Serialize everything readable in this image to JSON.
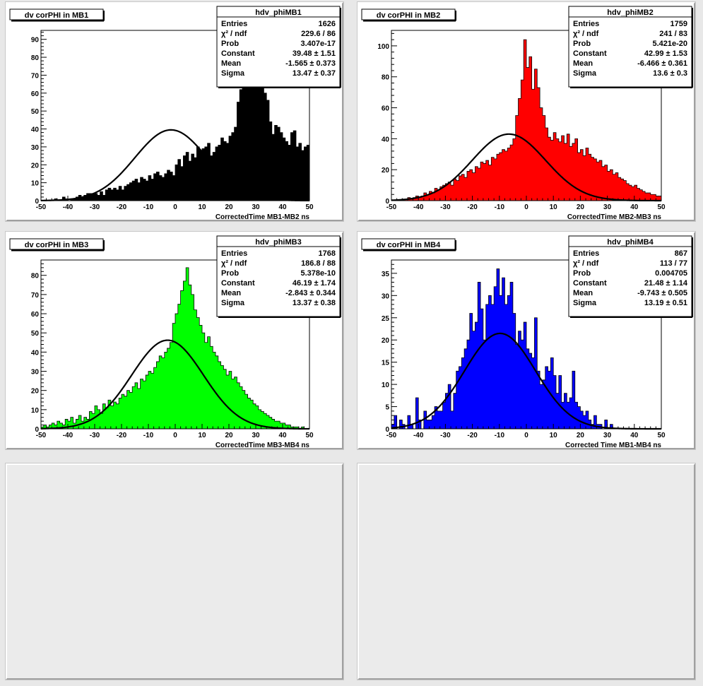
{
  "chart_data": [
    {
      "type": "bar",
      "pad_title": "dv corPHI in MB1",
      "stats_title": "hdv_phiMB1",
      "stats": [
        {
          "label": "Entries",
          "value": "1626"
        },
        {
          "label": "χ² / ndf",
          "value": "229.6 / 86"
        },
        {
          "label": "Prob",
          "value": "3.407e-17"
        },
        {
          "label": "Constant",
          "value": "39.48 ± 1.51"
        },
        {
          "label": "Mean",
          "value": "-1.565 ± 0.373"
        },
        {
          "label": "Sigma",
          "value": "13.47 ± 0.37"
        }
      ],
      "xlabel": "CorrectedTime MB1-MB2   ns",
      "xlim": [
        -50,
        50
      ],
      "ylim": [
        0,
        95
      ],
      "xticks": [
        -50,
        -40,
        -30,
        -20,
        -10,
        0,
        10,
        20,
        30,
        40,
        50
      ],
      "yticks": [
        0,
        10,
        20,
        30,
        40,
        50,
        60,
        70,
        80,
        90
      ],
      "fill": "#000000",
      "fit": {
        "constant": 39.48,
        "mean": -1.565,
        "sigma": 13.47
      },
      "bin_start": -50,
      "bin_width": 1,
      "values": [
        0,
        0,
        0,
        0,
        0,
        1,
        0,
        0,
        2,
        1,
        0,
        1,
        1,
        2,
        3,
        2,
        3,
        4,
        4,
        4,
        4,
        3,
        5,
        3,
        6,
        7,
        6,
        7,
        6,
        8,
        6,
        8,
        9,
        10,
        11,
        12,
        10,
        13,
        12,
        11,
        14,
        12,
        15,
        16,
        14,
        13,
        15,
        17,
        16,
        14,
        20,
        23,
        19,
        25,
        27,
        22,
        26,
        24,
        30,
        28,
        29,
        30,
        32,
        25,
        27,
        30,
        31,
        35,
        33,
        32,
        36,
        38,
        41,
        55,
        62,
        72,
        80,
        88,
        91,
        87,
        82,
        79,
        78,
        60,
        56,
        44,
        37,
        42,
        41,
        38,
        35,
        33,
        31,
        38,
        39,
        30,
        32,
        28,
        30,
        31,
        29,
        31,
        25,
        24,
        27,
        20,
        23,
        26,
        22,
        21,
        19,
        22,
        17,
        16,
        20,
        18,
        15,
        16,
        14,
        15,
        13,
        12,
        11,
        10,
        9,
        10,
        11,
        9,
        8,
        9,
        7,
        6,
        5,
        4,
        4,
        5,
        3,
        3,
        2,
        3,
        2,
        1,
        2,
        1,
        1,
        0,
        1,
        0,
        1,
        0,
        0,
        0,
        0,
        0,
        0
      ]
    },
    {
      "type": "bar",
      "pad_title": "dv corPHI in MB2",
      "stats_title": "hdv_phiMB2",
      "stats": [
        {
          "label": "Entries",
          "value": "1759"
        },
        {
          "label": "χ² / ndf",
          "value": "241 / 83"
        },
        {
          "label": "Prob",
          "value": "5.421e-20"
        },
        {
          "label": "Constant",
          "value": "42.99 ± 1.53"
        },
        {
          "label": "Mean",
          "value": "-6.466 ± 0.361"
        },
        {
          "label": "Sigma",
          "value": "13.6 ± 0.3"
        }
      ],
      "xlabel": "CorrectedTime MB2-MB3   ns",
      "xlim": [
        -50,
        50
      ],
      "ylim": [
        0,
        110
      ],
      "xticks": [
        -50,
        -40,
        -30,
        -20,
        -10,
        0,
        10,
        20,
        30,
        40,
        50
      ],
      "yticks": [
        0,
        20,
        40,
        60,
        80,
        100
      ],
      "fill": "#ff0000",
      "fit": {
        "constant": 42.99,
        "mean": -6.466,
        "sigma": 13.6
      },
      "bin_start": -50,
      "bin_width": 1,
      "values": [
        0,
        0,
        0,
        0,
        1,
        1,
        2,
        1,
        2,
        3,
        2,
        3,
        5,
        4,
        6,
        5,
        8,
        7,
        9,
        10,
        11,
        12,
        10,
        14,
        13,
        16,
        17,
        15,
        19,
        20,
        18,
        22,
        21,
        25,
        24,
        26,
        23,
        28,
        27,
        30,
        31,
        33,
        32,
        34,
        36,
        40,
        55,
        66,
        78,
        104,
        86,
        93,
        72,
        85,
        73,
        60,
        55,
        47,
        41,
        39,
        44,
        40,
        38,
        42,
        37,
        43,
        35,
        37,
        40,
        31,
        33,
        29,
        34,
        30,
        28,
        27,
        25,
        26,
        22,
        23,
        19,
        20,
        17,
        18,
        15,
        14,
        13,
        11,
        10,
        9,
        10,
        8,
        7,
        6,
        5,
        5,
        4,
        4,
        3,
        3,
        2,
        3,
        2,
        1,
        2,
        1,
        1,
        1,
        0,
        1,
        0,
        0,
        0,
        0,
        0,
        0,
        0,
        0,
        0,
        0,
        0,
        0,
        0,
        0,
        0,
        0
      ]
    },
    {
      "type": "bar",
      "pad_title": "dv corPHI in MB3",
      "stats_title": "hdv_phiMB3",
      "stats": [
        {
          "label": "Entries",
          "value": "1768"
        },
        {
          "label": "χ² / ndf",
          "value": "186.8 / 88"
        },
        {
          "label": "Prob",
          "value": "5.378e-10"
        },
        {
          "label": "Constant",
          "value": "46.19 ± 1.74"
        },
        {
          "label": "Mean",
          "value": "-2.843 ± 0.344"
        },
        {
          "label": "Sigma",
          "value": "13.37 ± 0.38"
        }
      ],
      "xlabel": "CorrectedTime MB3-MB4   ns",
      "xlim": [
        -50,
        50
      ],
      "ylim": [
        0,
        88
      ],
      "xticks": [
        -50,
        -40,
        -30,
        -20,
        -10,
        0,
        10,
        20,
        30,
        40,
        50
      ],
      "yticks": [
        0,
        10,
        20,
        30,
        40,
        50,
        60,
        70,
        80
      ],
      "fill": "#00ff00",
      "fit": {
        "constant": 46.19,
        "mean": -2.843,
        "sigma": 13.37
      },
      "bin_start": -50,
      "bin_width": 1,
      "values": [
        1,
        2,
        1,
        2,
        3,
        2,
        4,
        3,
        2,
        5,
        4,
        6,
        3,
        5,
        7,
        4,
        6,
        5,
        9,
        8,
        12,
        10,
        8,
        13,
        11,
        15,
        12,
        14,
        13,
        16,
        18,
        17,
        20,
        19,
        22,
        24,
        21,
        26,
        25,
        28,
        30,
        29,
        32,
        35,
        38,
        37,
        40,
        42,
        45,
        55,
        60,
        65,
        72,
        77,
        84,
        75,
        70,
        62,
        58,
        54,
        50,
        45,
        48,
        43,
        40,
        38,
        35,
        33,
        31,
        28,
        30,
        26,
        27,
        24,
        22,
        20,
        18,
        16,
        15,
        13,
        12,
        10,
        9,
        8,
        7,
        6,
        5,
        4,
        4,
        3,
        3,
        2,
        2,
        1,
        1,
        1,
        0,
        1,
        0,
        0
      ]
    },
    {
      "type": "bar",
      "pad_title": "dv corPHI in MB4",
      "stats_title": "hdv_phiMB4",
      "stats": [
        {
          "label": "Entries",
          "value": "867"
        },
        {
          "label": "χ² / ndf",
          "value": "113 / 77"
        },
        {
          "label": "Prob",
          "value": "0.004705"
        },
        {
          "label": "Constant",
          "value": "21.48 ± 1.14"
        },
        {
          "label": "Mean",
          "value": "-9.743 ± 0.505"
        },
        {
          "label": "Sigma",
          "value": "13.19 ± 0.51"
        }
      ],
      "xlabel": "Corrected Time MB1-MB4   ns",
      "xlim": [
        -50,
        50
      ],
      "ylim": [
        0,
        38
      ],
      "xticks": [
        -50,
        -40,
        -30,
        -20,
        -10,
        0,
        10,
        20,
        30,
        40,
        50
      ],
      "yticks": [
        0,
        5,
        10,
        15,
        20,
        25,
        30,
        35
      ],
      "fill": "#0000ff",
      "fit": {
        "constant": 21.48,
        "mean": -9.743,
        "sigma": 13.19
      },
      "bin_start": -50,
      "bin_width": 1,
      "values": [
        1,
        3,
        0,
        2,
        1,
        0,
        3,
        1,
        0,
        7,
        2,
        0,
        4,
        2,
        2,
        3,
        5,
        4,
        4,
        6,
        8,
        10,
        4,
        8,
        13,
        14,
        16,
        18,
        20,
        26,
        22,
        24,
        33,
        27,
        20,
        28,
        30,
        28,
        32,
        36,
        30,
        34,
        28,
        30,
        33,
        26,
        19,
        22,
        20,
        24,
        18,
        17,
        16,
        25,
        13,
        10,
        11,
        14,
        13,
        16,
        12,
        8,
        12,
        6,
        8,
        6,
        7,
        13,
        6,
        5,
        4,
        3,
        4,
        2,
        1,
        3,
        1,
        1,
        0,
        2,
        0,
        1,
        0,
        0,
        0,
        0,
        0,
        0,
        0,
        0,
        0,
        0,
        0,
        0,
        0,
        0,
        0,
        0,
        0,
        0
      ]
    }
  ]
}
